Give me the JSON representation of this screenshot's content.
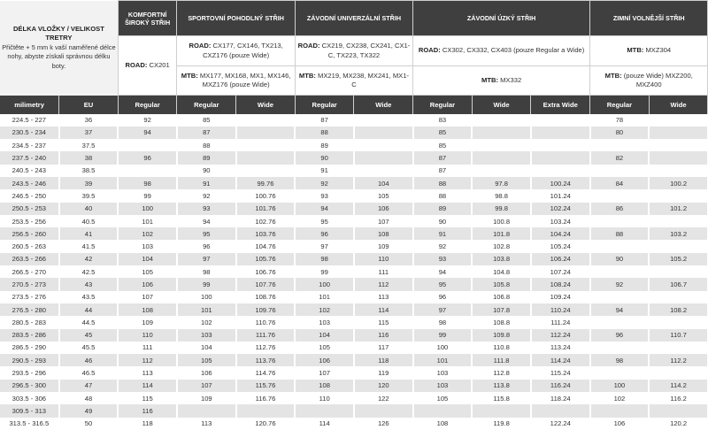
{
  "corner": {
    "title": "DÉLKA VLOŽKY / VELIKOST TRETRY",
    "note": "Přičtěte + 5 mm k vaší naměřené délce nohy, abyste získali správnou délku boty."
  },
  "categories": [
    {
      "title": "KOMFORTNÍ ŠIROKÝ STŘIH"
    },
    {
      "title": "SPORTOVNÍ POHODLNÝ STŘIH"
    },
    {
      "title": "ZÁVODNÍ UNIVERZÁLNÍ STŘIH"
    },
    {
      "title": "ZÁVODNÍ ÚZKÝ STŘIH"
    },
    {
      "title": "ZIMNÍ VOLNĚJŠÍ STŘIH"
    }
  ],
  "models": {
    "komfort_road": {
      "label": "ROAD:",
      "value": " CX201"
    },
    "sport_road": {
      "label": "ROAD:",
      "value": " CX177, CX146, TX213, CXZ176 (pouze Wide)"
    },
    "sport_mtb": {
      "label": "MTB:",
      "value": " MX177, MX168, MX1, MX146, MXZ176 (pouze Wide)"
    },
    "univ_road": {
      "label": "ROAD:",
      "value": " CX219, CX238, CX241, CX1-C, TX223, TX322"
    },
    "univ_mtb": {
      "label": "MTB:",
      "value": " MX219, MX238, MX241, MX1-C"
    },
    "uzky_road": {
      "label": "ROAD:",
      "value": " CX302, CX332, CX403 (pouze Regular a Wide)"
    },
    "uzky_mtb": {
      "label": "MTB:",
      "value": " MX332"
    },
    "zimni_road": {
      "label": "MTB:",
      "value": " MXZ304"
    },
    "zimni_mtb": {
      "label": "MTB:",
      "value": " (pouze Wide) MXZ200, MXZ400"
    }
  },
  "columns": [
    "milimetry",
    "EU",
    "Regular",
    "Regular",
    "Wide",
    "Regular",
    "Wide",
    "Regular",
    "Wide",
    "Extra Wide",
    "Regular",
    "Wide"
  ],
  "rows": [
    [
      "224.5 - 227",
      "36",
      "92",
      "85",
      "",
      "87",
      "",
      "83",
      "",
      "",
      "78",
      ""
    ],
    [
      "230.5 - 234",
      "37",
      "94",
      "87",
      "",
      "88",
      "",
      "85",
      "",
      "",
      "80",
      ""
    ],
    [
      "234.5 - 237",
      "37.5",
      "",
      "88",
      "",
      "89",
      "",
      "85",
      "",
      "",
      "",
      ""
    ],
    [
      "237.5 - 240",
      "38",
      "96",
      "89",
      "",
      "90",
      "",
      "87",
      "",
      "",
      "82",
      ""
    ],
    [
      "240.5 - 243",
      "38.5",
      "",
      "90",
      "",
      "91",
      "",
      "87",
      "",
      "",
      "",
      ""
    ],
    [
      "243.5 - 246",
      "39",
      "98",
      "91",
      "99.76",
      "92",
      "104",
      "88",
      "97.8",
      "100.24",
      "84",
      "100.2"
    ],
    [
      "246.5 - 250",
      "39.5",
      "99",
      "92",
      "100.76",
      "93",
      "105",
      "88",
      "98.8",
      "101.24",
      "",
      ""
    ],
    [
      "250.5 - 253",
      "40",
      "100",
      "93",
      "101.76",
      "94",
      "106",
      "89",
      "99.8",
      "102.24",
      "86",
      "101.2"
    ],
    [
      "253.5 - 256",
      "40.5",
      "101",
      "94",
      "102.76",
      "95",
      "107",
      "90",
      "100.8",
      "103.24",
      "",
      ""
    ],
    [
      "256.5 - 260",
      "41",
      "102",
      "95",
      "103.76",
      "96",
      "108",
      "91",
      "101.8",
      "104.24",
      "88",
      "103.2"
    ],
    [
      "260.5 - 263",
      "41.5",
      "103",
      "96",
      "104.76",
      "97",
      "109",
      "92",
      "102.8",
      "105.24",
      "",
      ""
    ],
    [
      "263.5 - 266",
      "42",
      "104",
      "97",
      "105.76",
      "98",
      "110",
      "93",
      "103.8",
      "106.24",
      "90",
      "105.2"
    ],
    [
      "266.5 - 270",
      "42.5",
      "105",
      "98",
      "106.76",
      "99",
      "111",
      "94",
      "104.8",
      "107.24",
      "",
      ""
    ],
    [
      "270.5 - 273",
      "43",
      "106",
      "99",
      "107.76",
      "100",
      "112",
      "95",
      "105.8",
      "108.24",
      "92",
      "106.7"
    ],
    [
      "273.5 - 276",
      "43.5",
      "107",
      "100",
      "108.76",
      "101",
      "113",
      "96",
      "106.8",
      "109.24",
      "",
      ""
    ],
    [
      "276.5 - 280",
      "44",
      "108",
      "101",
      "109.76",
      "102",
      "114",
      "97",
      "107.8",
      "110.24",
      "94",
      "108.2"
    ],
    [
      "280.5 - 283",
      "44.5",
      "109",
      "102",
      "110.76",
      "103",
      "115",
      "98",
      "108.8",
      "111.24",
      "",
      ""
    ],
    [
      "283.5 - 286",
      "45",
      "110",
      "103",
      "111.76",
      "104",
      "116",
      "99",
      "109.8",
      "112.24",
      "96",
      "110.7"
    ],
    [
      "286.5 - 290",
      "45.5",
      "111",
      "104",
      "112.76",
      "105",
      "117",
      "100",
      "110.8",
      "113.24",
      "",
      ""
    ],
    [
      "290.5 - 293",
      "46",
      "112",
      "105",
      "113.76",
      "106",
      "118",
      "101",
      "111.8",
      "114.24",
      "98",
      "112.2"
    ],
    [
      "293.5 - 296",
      "46.5",
      "113",
      "106",
      "114.76",
      "107",
      "119",
      "103",
      "112.8",
      "115.24",
      "",
      ""
    ],
    [
      "296.5 - 300",
      "47",
      "114",
      "107",
      "115.76",
      "108",
      "120",
      "103",
      "113.8",
      "116.24",
      "100",
      "114.2"
    ],
    [
      "303.5 - 306",
      "48",
      "115",
      "109",
      "116.76",
      "110",
      "122",
      "105",
      "115.8",
      "118.24",
      "102",
      "116.2"
    ],
    [
      "309.5 - 313",
      "49",
      "116",
      "",
      "",
      "",
      "",
      "",
      "",
      "",
      "",
      ""
    ],
    [
      "313.5 - 316.5",
      "50",
      "118",
      "113",
      "120.76",
      "114",
      "126",
      "108",
      "119.8",
      "122.24",
      "106",
      "120.2"
    ]
  ]
}
